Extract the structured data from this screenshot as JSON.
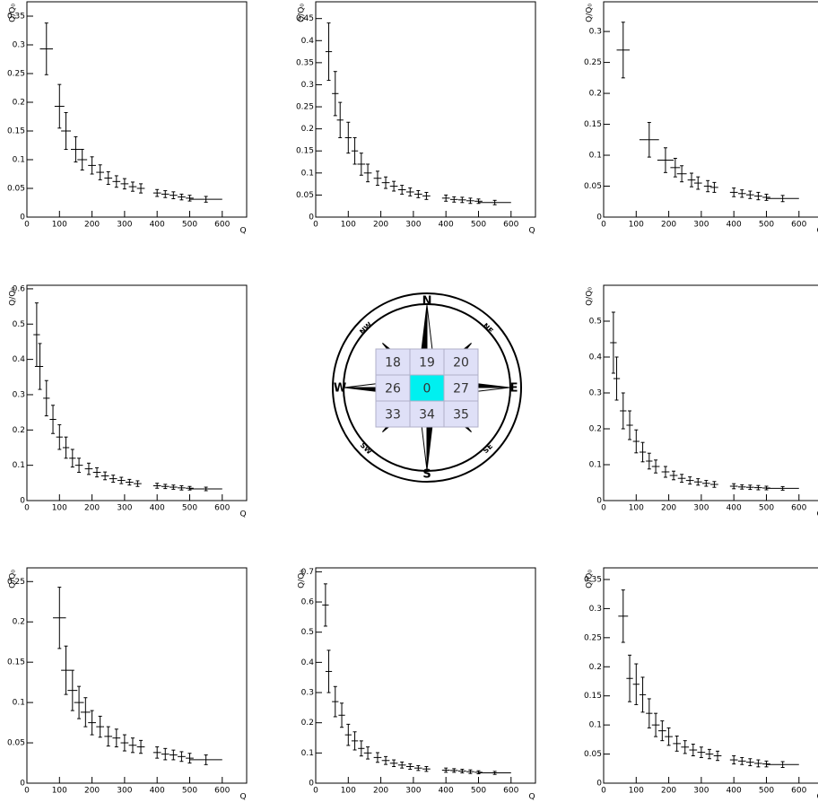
{
  "chart_data": [
    {
      "type": "scatter",
      "x_label": "Q",
      "y_label": "Q/Q₀",
      "color": "#000000",
      "xlim": [
        0,
        675
      ],
      "xticks": [
        0,
        100,
        200,
        300,
        400,
        500,
        600
      ],
      "ylim": [
        0,
        0.375
      ],
      "yticks": [
        0,
        0.05,
        0.1,
        0.15,
        0.2,
        0.25,
        0.3,
        0.35
      ],
      "x": [
        60,
        100,
        120,
        150,
        170,
        200,
        225,
        250,
        275,
        300,
        325,
        350,
        400,
        425,
        450,
        475,
        500,
        550
      ],
      "xerr": [
        20,
        15,
        15,
        15,
        15,
        12,
        12,
        12,
        12,
        12,
        12,
        12,
        12,
        12,
        12,
        12,
        12,
        50
      ],
      "values": [
        0.293,
        0.193,
        0.15,
        0.118,
        0.1,
        0.09,
        0.078,
        0.068,
        0.062,
        0.058,
        0.053,
        0.05,
        0.042,
        0.04,
        0.038,
        0.035,
        0.033,
        0.031
      ],
      "yerr": [
        0.045,
        0.038,
        0.032,
        0.022,
        0.018,
        0.015,
        0.013,
        0.011,
        0.01,
        0.009,
        0.008,
        0.008,
        0.006,
        0.006,
        0.006,
        0.005,
        0.005,
        0.005
      ]
    },
    {
      "type": "scatter",
      "x_label": "Q",
      "y_label": "Q/Q₀",
      "color": "#000000",
      "xlim": [
        0,
        675
      ],
      "xticks": [
        0,
        100,
        200,
        300,
        400,
        500,
        600
      ],
      "ylim": [
        0,
        0.488
      ],
      "yticks": [
        0,
        0.05,
        0.1,
        0.15,
        0.2,
        0.25,
        0.3,
        0.35,
        0.4,
        0.45
      ],
      "x": [
        40,
        60,
        75,
        100,
        120,
        140,
        160,
        190,
        215,
        240,
        265,
        290,
        315,
        340,
        400,
        425,
        450,
        475,
        500,
        550
      ],
      "xerr": [
        10,
        10,
        10,
        10,
        10,
        12,
        12,
        12,
        12,
        12,
        12,
        12,
        12,
        12,
        12,
        12,
        12,
        12,
        12,
        50
      ],
      "values": [
        0.375,
        0.28,
        0.22,
        0.18,
        0.15,
        0.12,
        0.1,
        0.088,
        0.078,
        0.07,
        0.062,
        0.057,
        0.052,
        0.048,
        0.043,
        0.04,
        0.039,
        0.037,
        0.036,
        0.033
      ],
      "yerr": [
        0.065,
        0.05,
        0.04,
        0.035,
        0.03,
        0.025,
        0.02,
        0.016,
        0.013,
        0.011,
        0.01,
        0.009,
        0.008,
        0.008,
        0.007,
        0.006,
        0.006,
        0.006,
        0.005,
        0.005
      ]
    },
    {
      "type": "scatter",
      "x_label": "Q",
      "y_label": "Q/Q₀",
      "color": "#000000",
      "xlim": [
        0,
        675
      ],
      "xticks": [
        0,
        100,
        200,
        300,
        400,
        500,
        600
      ],
      "ylim": [
        0,
        0.348
      ],
      "yticks": [
        0,
        0.05,
        0.1,
        0.15,
        0.2,
        0.25,
        0.3
      ],
      "x": [
        60,
        140,
        190,
        220,
        240,
        270,
        290,
        320,
        340,
        400,
        425,
        450,
        475,
        500,
        550
      ],
      "xerr": [
        20,
        30,
        25,
        15,
        15,
        12,
        12,
        12,
        12,
        12,
        12,
        12,
        12,
        12,
        50
      ],
      "values": [
        0.27,
        0.125,
        0.092,
        0.08,
        0.07,
        0.06,
        0.055,
        0.05,
        0.048,
        0.04,
        0.038,
        0.036,
        0.034,
        0.032,
        0.03
      ],
      "yerr": [
        0.045,
        0.028,
        0.02,
        0.015,
        0.013,
        0.011,
        0.01,
        0.009,
        0.008,
        0.007,
        0.006,
        0.006,
        0.006,
        0.005,
        0.005
      ]
    },
    {
      "type": "scatter",
      "x_label": "Q",
      "y_label": "Q/Q₀",
      "color": "#000000",
      "xlim": [
        0,
        675
      ],
      "xticks": [
        0,
        100,
        200,
        300,
        400,
        500,
        600
      ],
      "ylim": [
        0,
        0.61
      ],
      "yticks": [
        0,
        0.1,
        0.2,
        0.3,
        0.4,
        0.5,
        0.6
      ],
      "x": [
        30,
        40,
        60,
        80,
        100,
        120,
        140,
        160,
        190,
        215,
        240,
        265,
        290,
        315,
        340,
        400,
        425,
        450,
        475,
        500,
        550
      ],
      "xerr": [
        10,
        10,
        10,
        10,
        10,
        10,
        10,
        12,
        12,
        12,
        12,
        12,
        12,
        12,
        12,
        12,
        12,
        12,
        12,
        12,
        50
      ],
      "values": [
        0.47,
        0.38,
        0.29,
        0.23,
        0.18,
        0.15,
        0.12,
        0.1,
        0.09,
        0.08,
        0.07,
        0.062,
        0.057,
        0.052,
        0.048,
        0.042,
        0.04,
        0.038,
        0.036,
        0.035,
        0.033
      ],
      "yerr": [
        0.09,
        0.065,
        0.05,
        0.04,
        0.035,
        0.03,
        0.025,
        0.02,
        0.016,
        0.013,
        0.011,
        0.01,
        0.009,
        0.008,
        0.008,
        0.007,
        0.006,
        0.006,
        0.006,
        0.005,
        0.005
      ]
    },
    {
      "type": "scatter",
      "x_label": "Q",
      "y_label": "Q/Q₀",
      "color": "#000000",
      "xlim": [
        0,
        675
      ],
      "xticks": [
        0,
        100,
        200,
        300,
        400,
        500,
        600
      ],
      "ylim": [
        0,
        0.6
      ],
      "yticks": [
        0,
        0.1,
        0.2,
        0.3,
        0.4,
        0.5
      ],
      "x": [
        30,
        40,
        60,
        80,
        100,
        120,
        140,
        160,
        190,
        215,
        240,
        265,
        290,
        315,
        340,
        400,
        425,
        450,
        475,
        500,
        550
      ],
      "xerr": [
        10,
        10,
        10,
        10,
        10,
        10,
        10,
        12,
        12,
        12,
        12,
        12,
        12,
        12,
        12,
        12,
        12,
        12,
        12,
        12,
        50
      ],
      "values": [
        0.44,
        0.34,
        0.25,
        0.21,
        0.165,
        0.135,
        0.11,
        0.095,
        0.08,
        0.07,
        0.062,
        0.056,
        0.052,
        0.048,
        0.045,
        0.04,
        0.038,
        0.037,
        0.036,
        0.035,
        0.034
      ],
      "yerr": [
        0.085,
        0.06,
        0.05,
        0.04,
        0.032,
        0.027,
        0.022,
        0.018,
        0.015,
        0.012,
        0.011,
        0.01,
        0.009,
        0.008,
        0.008,
        0.007,
        0.006,
        0.006,
        0.006,
        0.005,
        0.005
      ]
    },
    {
      "type": "scatter",
      "x_label": "Q",
      "y_label": "Q/Q₀",
      "color": "#000000",
      "xlim": [
        0,
        675
      ],
      "xticks": [
        0,
        100,
        200,
        300,
        400,
        500,
        600
      ],
      "ylim": [
        0,
        0.267
      ],
      "yticks": [
        0,
        0.05,
        0.1,
        0.15,
        0.2,
        0.25
      ],
      "x": [
        100,
        120,
        140,
        160,
        180,
        200,
        225,
        250,
        275,
        300,
        325,
        350,
        400,
        425,
        450,
        475,
        500,
        550
      ],
      "xerr": [
        20,
        15,
        15,
        15,
        15,
        12,
        12,
        12,
        12,
        12,
        12,
        12,
        12,
        12,
        12,
        12,
        12,
        50
      ],
      "values": [
        0.205,
        0.14,
        0.115,
        0.1,
        0.088,
        0.075,
        0.07,
        0.058,
        0.056,
        0.05,
        0.047,
        0.045,
        0.038,
        0.036,
        0.035,
        0.033,
        0.031,
        0.029
      ],
      "yerr": [
        0.038,
        0.03,
        0.025,
        0.02,
        0.018,
        0.015,
        0.013,
        0.012,
        0.011,
        0.01,
        0.009,
        0.008,
        0.007,
        0.007,
        0.006,
        0.006,
        0.006,
        0.006
      ]
    },
    {
      "type": "scatter",
      "x_label": "Q",
      "y_label": "Q/Q₀",
      "color": "#000000",
      "xlim": [
        0,
        675
      ],
      "xticks": [
        0,
        100,
        200,
        300,
        400,
        500,
        600
      ],
      "ylim": [
        0,
        0.713
      ],
      "yticks": [
        0,
        0.1,
        0.2,
        0.3,
        0.4,
        0.5,
        0.6,
        0.7
      ],
      "x": [
        30,
        40,
        60,
        80,
        100,
        120,
        140,
        160,
        190,
        215,
        240,
        265,
        290,
        315,
        340,
        400,
        425,
        450,
        475,
        500,
        550
      ],
      "xerr": [
        10,
        10,
        10,
        10,
        10,
        10,
        10,
        12,
        12,
        12,
        12,
        12,
        12,
        12,
        12,
        12,
        12,
        12,
        12,
        12,
        50
      ],
      "values": [
        0.59,
        0.37,
        0.27,
        0.225,
        0.16,
        0.14,
        0.115,
        0.1,
        0.085,
        0.075,
        0.066,
        0.06,
        0.055,
        0.05,
        0.047,
        0.043,
        0.042,
        0.04,
        0.038,
        0.036,
        0.034
      ],
      "yerr": [
        0.07,
        0.07,
        0.05,
        0.04,
        0.035,
        0.03,
        0.025,
        0.02,
        0.016,
        0.013,
        0.011,
        0.01,
        0.009,
        0.008,
        0.008,
        0.007,
        0.006,
        0.006,
        0.006,
        0.005,
        0.005
      ]
    },
    {
      "type": "scatter",
      "x_label": "Q",
      "y_label": "Q/Q₀",
      "color": "#000000",
      "xlim": [
        0,
        675
      ],
      "xticks": [
        0,
        100,
        200,
        300,
        400,
        500,
        600
      ],
      "ylim": [
        0,
        0.37
      ],
      "yticks": [
        0,
        0.05,
        0.1,
        0.15,
        0.2,
        0.25,
        0.3,
        0.35
      ],
      "x": [
        60,
        80,
        100,
        120,
        140,
        160,
        180,
        200,
        225,
        250,
        275,
        300,
        325,
        350,
        400,
        425,
        450,
        475,
        500,
        550
      ],
      "xerr": [
        15,
        10,
        10,
        10,
        10,
        12,
        12,
        12,
        12,
        12,
        12,
        12,
        12,
        12,
        12,
        12,
        12,
        12,
        12,
        50
      ],
      "values": [
        0.287,
        0.18,
        0.17,
        0.152,
        0.12,
        0.1,
        0.09,
        0.08,
        0.068,
        0.062,
        0.057,
        0.053,
        0.05,
        0.047,
        0.04,
        0.038,
        0.036,
        0.034,
        0.033,
        0.032
      ],
      "yerr": [
        0.045,
        0.04,
        0.035,
        0.03,
        0.025,
        0.02,
        0.017,
        0.015,
        0.013,
        0.011,
        0.01,
        0.009,
        0.008,
        0.008,
        0.007,
        0.006,
        0.006,
        0.006,
        0.005,
        0.005
      ]
    }
  ],
  "compass": {
    "directions": [
      "N",
      "NE",
      "E",
      "SE",
      "S",
      "SW",
      "W",
      "NW"
    ],
    "grid": [
      [
        18,
        19,
        20
      ],
      [
        26,
        0,
        27
      ],
      [
        33,
        34,
        35
      ]
    ]
  }
}
